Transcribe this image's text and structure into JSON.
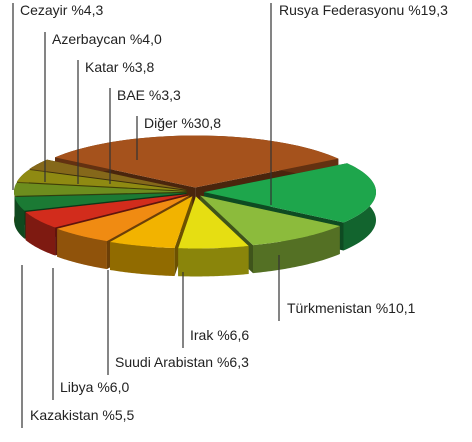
{
  "chart_data": {
    "type": "pie",
    "categories": [
      "Cezayir",
      "Azerbaycan",
      "Katar",
      "BAE",
      "Diğer",
      "Rusya Federasyonu",
      "Türkmenistan",
      "Irak",
      "Suudi Arabistan",
      "Libya",
      "Kazakistan"
    ],
    "values": [
      4.3,
      4.0,
      3.8,
      3.3,
      30.8,
      19.3,
      10.1,
      6.6,
      6.3,
      6.0,
      5.5
    ],
    "value_labels": [
      "%4,3",
      "%4,0",
      "%3,8",
      "%3,3",
      "%30,8",
      "%19,3",
      "%10,1",
      "%6,6",
      "%6,3",
      "%6,0",
      "%5,5"
    ],
    "colors": [
      "#1b7a34",
      "#6d8d1e",
      "#8f8a12",
      "#85681a",
      "#a5521c",
      "#1ea64c",
      "#8cbb3c",
      "#e6de12",
      "#f2b300",
      "#f08b12",
      "#d22c1c"
    ]
  }
}
